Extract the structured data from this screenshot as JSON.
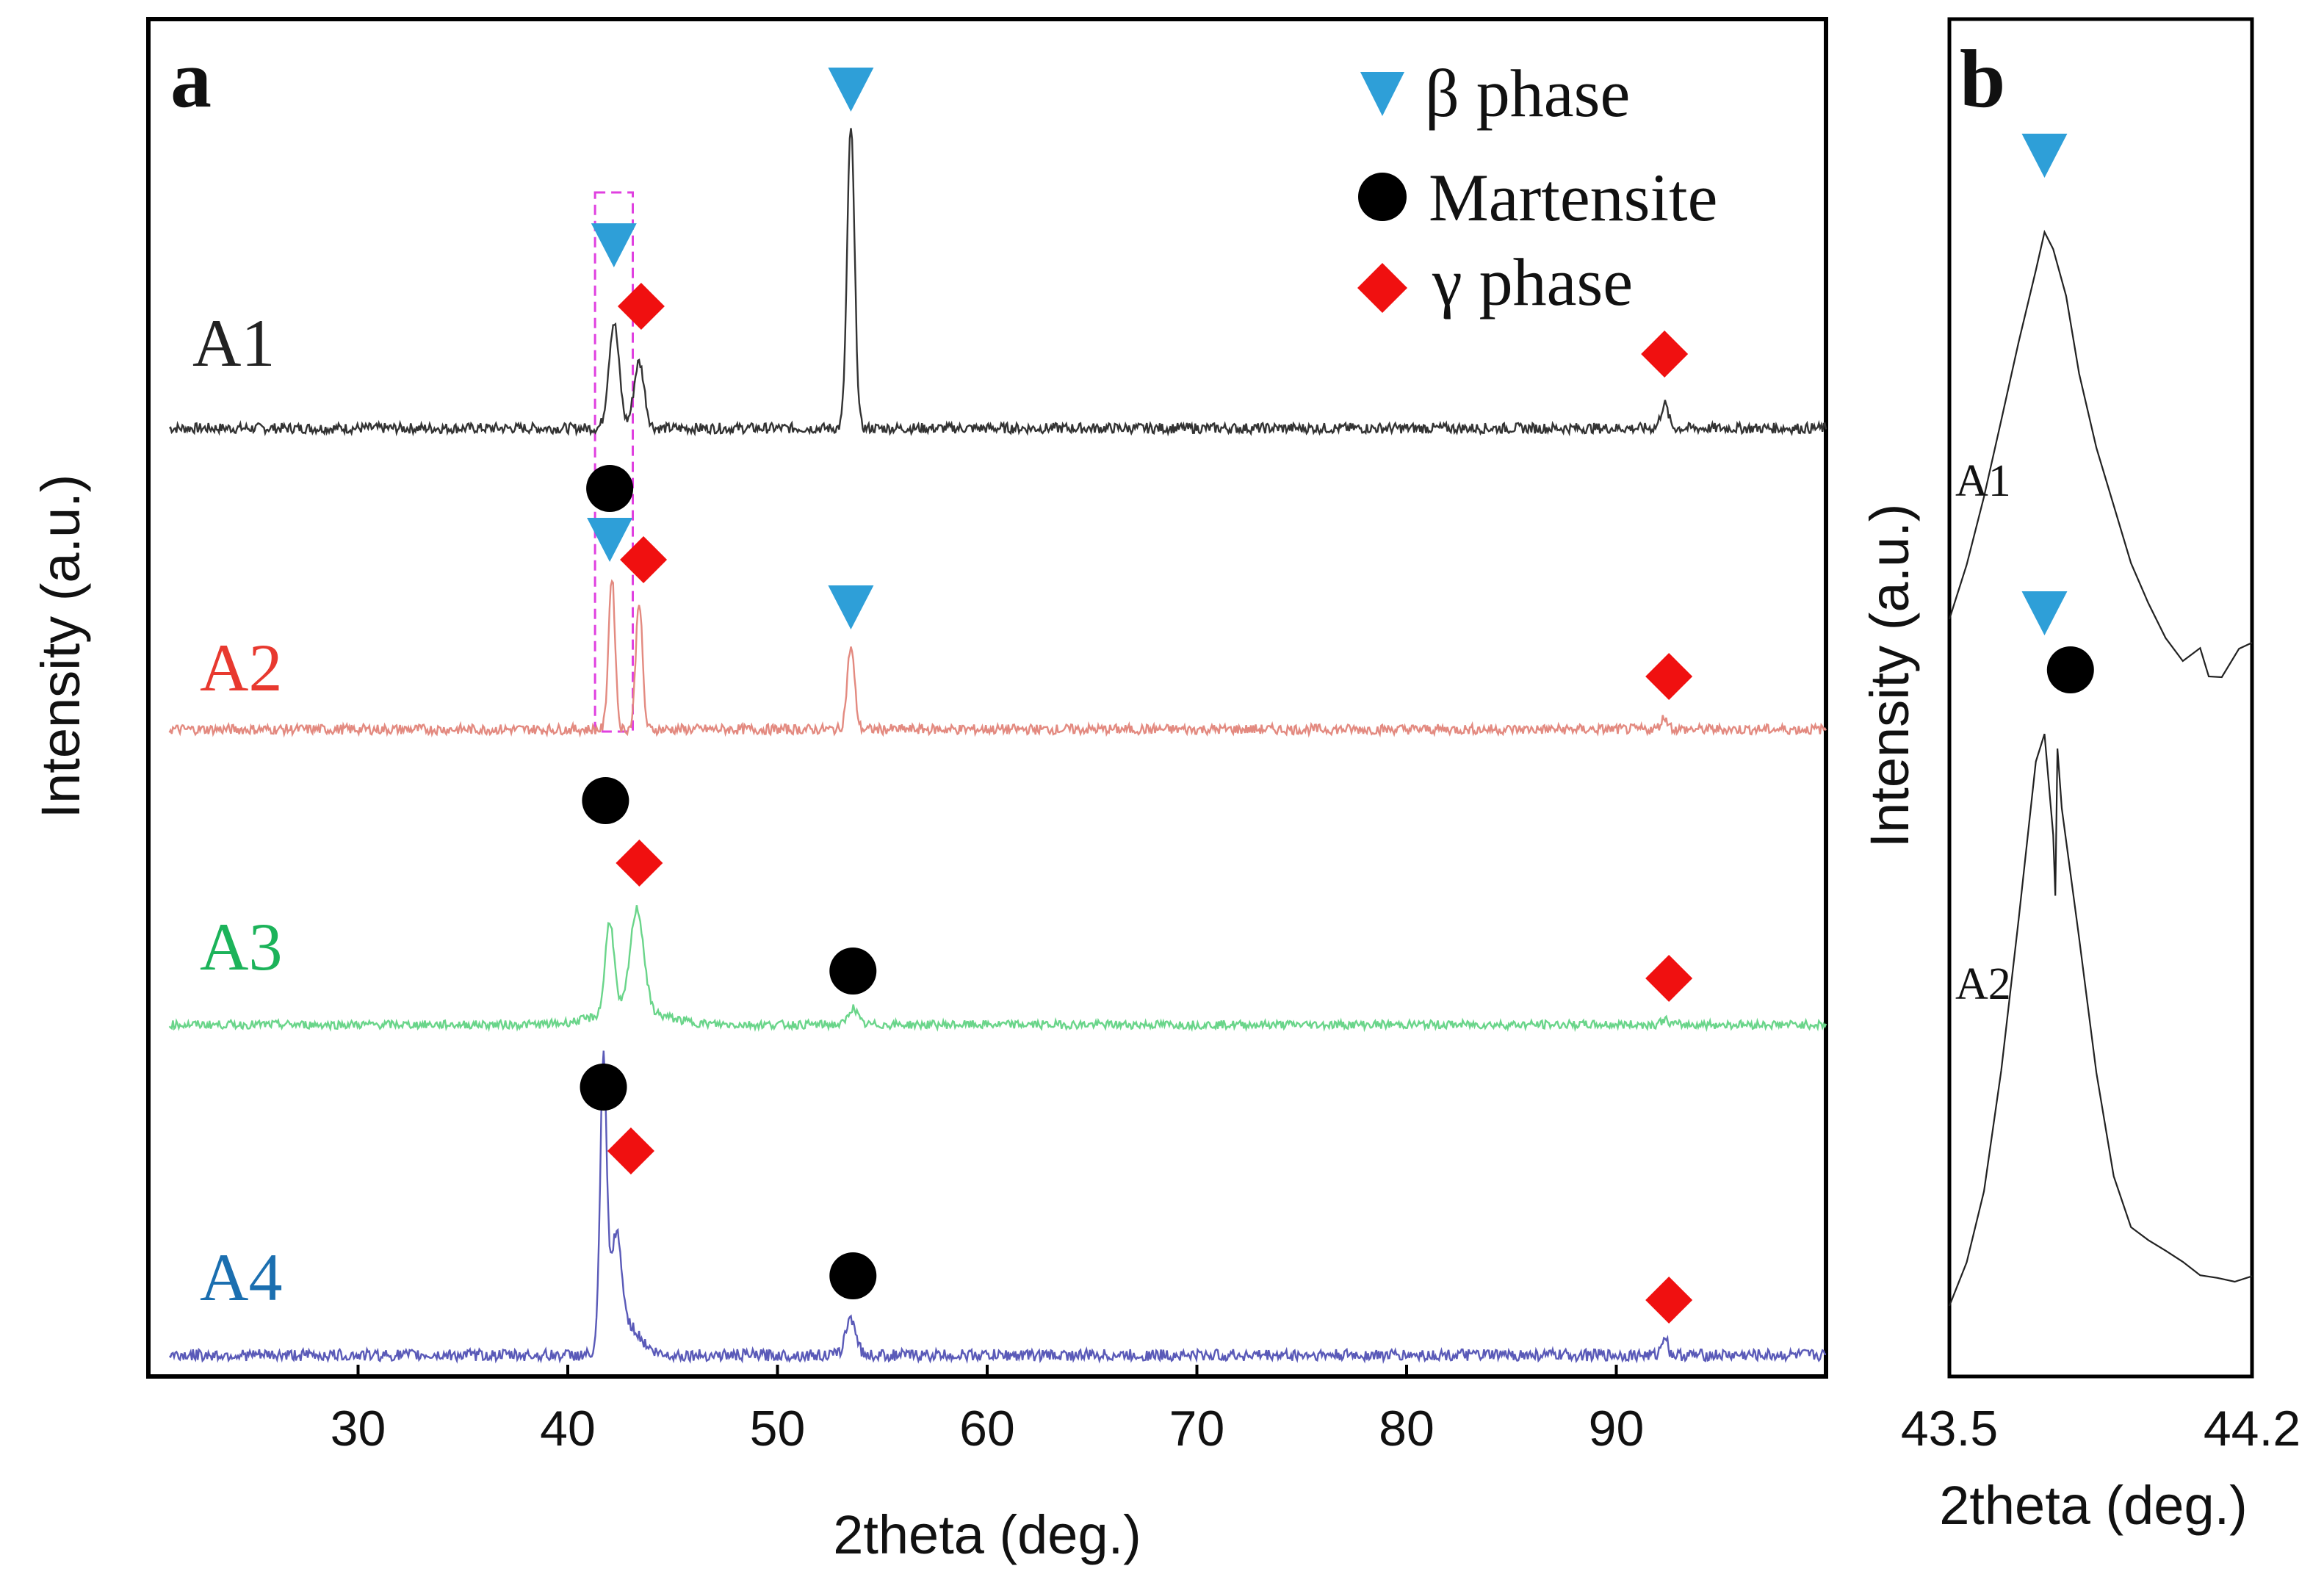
{
  "figure": {
    "panel_a_label": "a",
    "panel_b_label": "b"
  },
  "colors": {
    "beta": "#2e9fd8",
    "martensite": "#000000",
    "gamma": "#f01010",
    "highlight_box": "#e040e0",
    "A1": "#333333",
    "A2": "#e8392f",
    "A3": "#1cb35a",
    "A4": "#1b6fb0",
    "A4_trace": "#5a5ab8",
    "A2_trace": "#e38a80",
    "A3_trace": "#6ad58a"
  },
  "legend": {
    "beta": {
      "label": "β phase",
      "icon": "triangle-down-icon"
    },
    "martensite": {
      "label": "Martensite",
      "icon": "circle-icon"
    },
    "gamma": {
      "label": "γ phase",
      "icon": "diamond-icon"
    }
  },
  "chart_data": [
    {
      "panel": "a",
      "type": "line",
      "title": "",
      "xlabel": "2theta (deg.)",
      "ylabel": "Intensity (a.u.)",
      "xlim": [
        20,
        100
      ],
      "xticks": [
        30,
        40,
        50,
        60,
        70,
        80,
        90
      ],
      "yticks": [],
      "grid": false,
      "legend_position": "top-right",
      "highlight_region": {
        "x_range": [
          41.3,
          43.1
        ],
        "covers_series": [
          "A1",
          "A2"
        ]
      },
      "series": [
        {
          "name": "A1",
          "color_key": "A1",
          "trace_key": "A1",
          "baseline": 0.8,
          "scale": 1.0,
          "peaks": [
            {
              "x": 42.2,
              "height": 0.35,
              "width": 0.35
            },
            {
              "x": 43.4,
              "height": 0.22,
              "width": 0.35
            },
            {
              "x": 53.5,
              "height": 1.0,
              "width": 0.25
            },
            {
              "x": 92.3,
              "height": 0.08,
              "width": 0.25
            }
          ],
          "markers": [
            {
              "phase": "beta",
              "x": 42.2
            },
            {
              "phase": "gamma",
              "x": 43.5
            },
            {
              "phase": "beta",
              "x": 53.5
            },
            {
              "phase": "gamma",
              "x": 92.3
            }
          ]
        },
        {
          "name": "A2",
          "color_key": "A2",
          "trace_key": "A2_trace",
          "baseline": 0.55,
          "scale": 1.0,
          "peaks": [
            {
              "x": 42.1,
              "height": 0.52,
              "width": 0.22
            },
            {
              "x": 43.4,
              "height": 0.44,
              "width": 0.22
            },
            {
              "x": 53.5,
              "height": 0.28,
              "width": 0.25
            },
            {
              "x": 92.3,
              "height": 0.04,
              "width": 0.25
            }
          ],
          "markers": [
            {
              "phase": "martensite",
              "x": 42.0
            },
            {
              "phase": "beta",
              "x": 42.0
            },
            {
              "phase": "gamma",
              "x": 43.4
            },
            {
              "phase": "beta",
              "x": 53.5
            },
            {
              "phase": "gamma",
              "x": 92.3
            }
          ]
        },
        {
          "name": "A3",
          "color_key": "A3",
          "trace_key": "A3_trace",
          "baseline": 0.3,
          "scale": 1.0,
          "peaks": [
            {
              "x": 42.0,
              "height": 0.38,
              "width": 0.3
            },
            {
              "x": 43.3,
              "height": 0.42,
              "width": 0.45
            },
            {
              "x": 53.6,
              "height": 0.07,
              "width": 0.3
            },
            {
              "x": 92.3,
              "height": 0.02,
              "width": 0.25
            }
          ],
          "markers": [
            {
              "phase": "martensite",
              "x": 41.8
            },
            {
              "phase": "gamma",
              "x": 43.2
            },
            {
              "phase": "martensite",
              "x": 53.6
            },
            {
              "phase": "gamma",
              "x": 92.3
            }
          ]
        },
        {
          "name": "A4",
          "color_key": "A4",
          "trace_key": "A4_trace",
          "baseline": 0.05,
          "scale": 1.0,
          "peaks": [
            {
              "x": 41.7,
              "height": 0.85,
              "width": 0.22
            },
            {
              "x": 42.3,
              "height": 0.3,
              "width": 0.35
            },
            {
              "x": 53.5,
              "height": 0.11,
              "width": 0.35
            },
            {
              "x": 92.3,
              "height": 0.06,
              "width": 0.2
            }
          ],
          "markers": [
            {
              "phase": "martensite",
              "x": 41.7
            },
            {
              "phase": "gamma",
              "x": 42.8
            },
            {
              "phase": "martensite",
              "x": 53.6
            },
            {
              "phase": "gamma",
              "x": 92.3
            }
          ]
        }
      ]
    },
    {
      "panel": "b",
      "type": "line",
      "title": "",
      "xlabel": "2theta (deg.)",
      "ylabel": "Intensity (a.u.)",
      "xlim": [
        43.5,
        44.2
      ],
      "xticks": [
        43.5,
        44.2
      ],
      "yticks": [],
      "grid": false,
      "series": [
        {
          "name": "A1",
          "color_key": "A1",
          "points": [
            [
              43.5,
              0.58
            ],
            [
              43.54,
              0.64
            ],
            [
              43.58,
              0.71
            ],
            [
              43.62,
              0.79
            ],
            [
              43.66,
              0.87
            ],
            [
              43.7,
              0.95
            ],
            [
              43.72,
              0.985
            ],
            [
              43.74,
              0.97
            ],
            [
              43.77,
              0.92
            ],
            [
              43.8,
              0.84
            ],
            [
              43.84,
              0.76
            ],
            [
              43.88,
              0.7
            ],
            [
              43.92,
              0.64
            ],
            [
              43.96,
              0.6
            ],
            [
              44.0,
              0.56
            ],
            [
              44.04,
              0.54
            ],
            [
              44.08,
              0.55
            ],
            [
              44.1,
              0.52
            ],
            [
              44.13,
              0.52
            ],
            [
              44.17,
              0.55
            ],
            [
              44.2,
              0.56
            ]
          ],
          "markers": [
            {
              "phase": "beta",
              "x": 43.72
            }
          ]
        },
        {
          "name": "A2",
          "color_key": "A2",
          "points": [
            [
              43.5,
              0.02
            ],
            [
              43.54,
              0.08
            ],
            [
              43.58,
              0.18
            ],
            [
              43.62,
              0.34
            ],
            [
              43.66,
              0.55
            ],
            [
              43.7,
              0.76
            ],
            [
              43.72,
              0.8
            ],
            [
              43.74,
              0.66
            ],
            [
              43.745,
              0.58
            ],
            [
              43.75,
              0.78
            ],
            [
              43.76,
              0.7
            ],
            [
              43.8,
              0.52
            ],
            [
              43.84,
              0.34
            ],
            [
              43.88,
              0.2
            ],
            [
              43.92,
              0.13
            ],
            [
              43.96,
              0.11
            ],
            [
              44.0,
              0.1
            ],
            [
              44.04,
              0.08
            ],
            [
              44.08,
              0.06
            ],
            [
              44.12,
              0.06
            ],
            [
              44.16,
              0.055
            ],
            [
              44.2,
              0.06
            ]
          ],
          "markers": [
            {
              "phase": "beta",
              "x": 43.72
            },
            {
              "phase": "martensite",
              "x": 43.78
            }
          ]
        }
      ]
    }
  ]
}
